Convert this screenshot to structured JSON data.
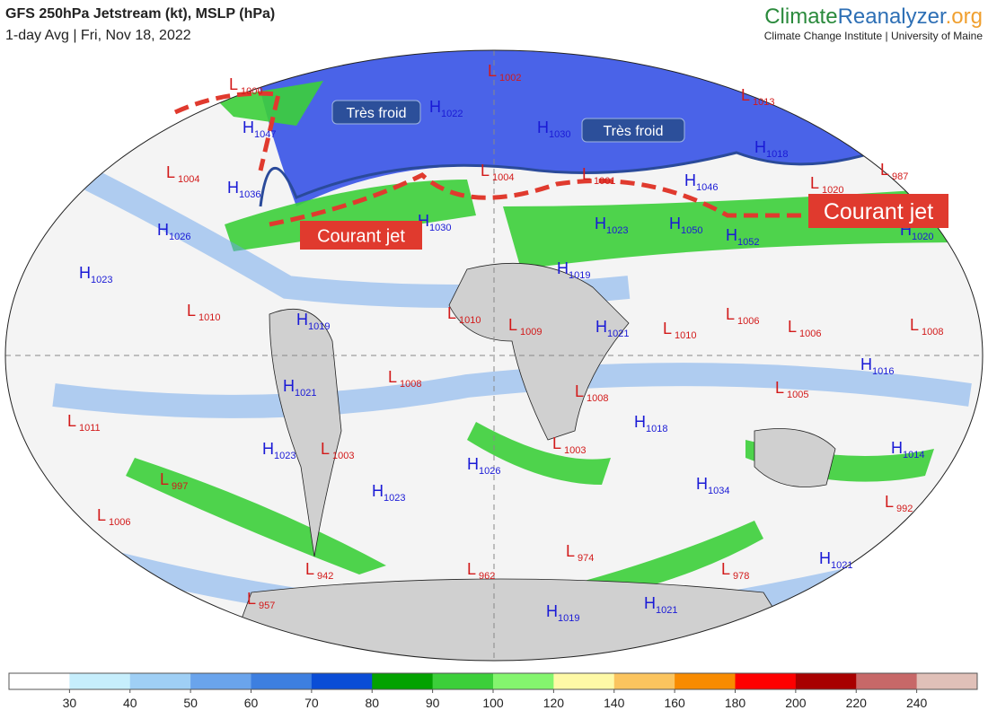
{
  "header": {
    "title": "GFS 250hPa Jetstream (kt), MSLP (hPa)",
    "subtitle": "1-day Avg | Fri, Nov 18, 2022",
    "brand_main": "Climate",
    "brand_mid": "Reanalyzer",
    "brand_end": ".org",
    "brand_sub": "Climate Change Institute | University of Maine"
  },
  "annotations": {
    "cold": [
      "Très froid",
      "Très froid"
    ],
    "jet": [
      "Courant jet",
      "Courant jet"
    ]
  },
  "centers": [
    {
      "kind": "L",
      "value": "1000"
    },
    {
      "kind": "H",
      "value": "1047"
    },
    {
      "kind": "L",
      "value": "1004"
    },
    {
      "kind": "H",
      "value": "1036"
    },
    {
      "kind": "H",
      "value": "1026"
    },
    {
      "kind": "H",
      "value": "1023"
    },
    {
      "kind": "L",
      "value": "1010"
    },
    {
      "kind": "H",
      "value": "1019"
    },
    {
      "kind": "H",
      "value": "1021"
    },
    {
      "kind": "L",
      "value": "1011"
    },
    {
      "kind": "H",
      "value": "1023"
    },
    {
      "kind": "L",
      "value": "1003"
    },
    {
      "kind": "L",
      "value": "997"
    },
    {
      "kind": "L",
      "value": "1006"
    },
    {
      "kind": "H",
      "value": "1023"
    },
    {
      "kind": "L",
      "value": "942"
    },
    {
      "kind": "L",
      "value": "957"
    },
    {
      "kind": "L",
      "value": "1008"
    },
    {
      "kind": "L",
      "value": "1010"
    },
    {
      "kind": "L",
      "value": "1009"
    },
    {
      "kind": "H",
      "value": "1026"
    },
    {
      "kind": "L",
      "value": "962"
    },
    {
      "kind": "L",
      "value": "974"
    },
    {
      "kind": "H",
      "value": "1019"
    },
    {
      "kind": "H",
      "value": "1021"
    },
    {
      "kind": "L",
      "value": "1008"
    },
    {
      "kind": "L",
      "value": "1003"
    },
    {
      "kind": "H",
      "value": "1018"
    },
    {
      "kind": "H",
      "value": "1021"
    },
    {
      "kind": "L",
      "value": "1010"
    },
    {
      "kind": "H",
      "value": "1034"
    },
    {
      "kind": "L",
      "value": "978"
    },
    {
      "kind": "H",
      "value": "1021"
    },
    {
      "kind": "L",
      "value": "992"
    },
    {
      "kind": "H",
      "value": "1014"
    },
    {
      "kind": "L",
      "value": "1005"
    },
    {
      "kind": "H",
      "value": "1016"
    },
    {
      "kind": "L",
      "value": "1006"
    },
    {
      "kind": "L",
      "value": "1006"
    },
    {
      "kind": "L",
      "value": "1008"
    },
    {
      "kind": "H",
      "value": "1020"
    },
    {
      "kind": "H",
      "value": "1052"
    },
    {
      "kind": "H",
      "value": "1050"
    },
    {
      "kind": "H",
      "value": "1023"
    },
    {
      "kind": "H",
      "value": "1019"
    },
    {
      "kind": "H",
      "value": "1030"
    },
    {
      "kind": "L",
      "value": "1004"
    },
    {
      "kind": "L",
      "value": "1001"
    },
    {
      "kind": "H",
      "value": "1046"
    },
    {
      "kind": "L",
      "value": "1013"
    },
    {
      "kind": "L",
      "value": "1002"
    },
    {
      "kind": "H",
      "value": "1022"
    },
    {
      "kind": "H",
      "value": "1030"
    },
    {
      "kind": "L",
      "value": "1020"
    },
    {
      "kind": "L",
      "value": "987"
    },
    {
      "kind": "H",
      "value": "1018"
    }
  ],
  "colorbar": {
    "colors": [
      "#ffffff",
      "#c6eefc",
      "#9fcff5",
      "#6aa4ec",
      "#3d7fe0",
      "#0a4dd6",
      "#03a200",
      "#3ccf3a",
      "#84f56e",
      "#fef9a6",
      "#fbc45e",
      "#f88b00",
      "#fe0000",
      "#a80000",
      "#c76868",
      "#e0c0b8"
    ],
    "ticks": [
      30,
      40,
      50,
      60,
      70,
      80,
      90,
      100,
      120,
      140,
      160,
      180,
      200,
      220,
      240
    ]
  }
}
